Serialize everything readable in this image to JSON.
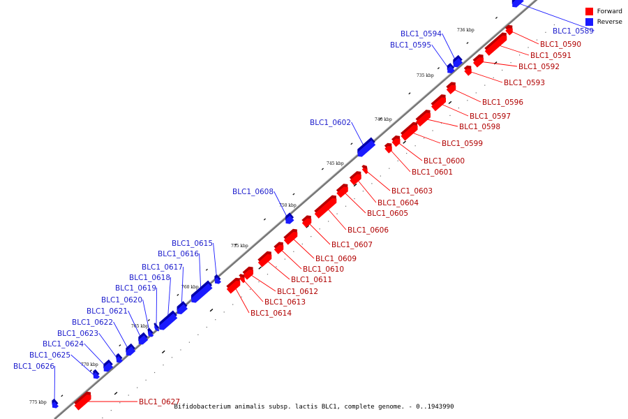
{
  "caption": "Bifidobacterium animalis subsp. lactis BLC1, complete genome. - 0..1943990",
  "legend": {
    "forward_label": "Forward",
    "reverse_label": "Reverse",
    "forward_color": "#ff0000",
    "reverse_color": "#1a1aff"
  },
  "colors": {
    "forward_fill": "#ff0000",
    "forward_side": "#b80000",
    "reverse_fill": "#1a1aff",
    "reverse_side": "#0000aa",
    "forward_label": "#b00000",
    "reverse_label": "#1a1acc",
    "backbone": "#777777"
  },
  "ticks": [
    {
      "label": "735 kbp",
      "kbp": 735
    },
    {
      "label": "740 kbp",
      "kbp": 740
    },
    {
      "label": "745 kbp",
      "kbp": 745
    },
    {
      "label": "750 kbp",
      "kbp": 750
    },
    {
      "label": "755 kbp",
      "kbp": 755
    },
    {
      "label": "760 kbp",
      "kbp": 760
    },
    {
      "label": "765 kbp",
      "kbp": 765
    },
    {
      "label": "770 kbp",
      "kbp": 770
    },
    {
      "label": "775 kbp",
      "kbp": 775
    }
  ],
  "genes": [
    {
      "name": "BLC1_0589",
      "strand": "reverse"
    },
    {
      "name": "BLC1_0590",
      "strand": "forward"
    },
    {
      "name": "BLC1_0591",
      "strand": "forward"
    },
    {
      "name": "BLC1_0592",
      "strand": "forward"
    },
    {
      "name": "BLC1_0593",
      "strand": "forward"
    },
    {
      "name": "BLC1_0594",
      "strand": "reverse"
    },
    {
      "name": "BLC1_0595",
      "strand": "reverse"
    },
    {
      "name": "BLC1_0596",
      "strand": "forward"
    },
    {
      "name": "BLC1_0597",
      "strand": "forward"
    },
    {
      "name": "BLC1_0598",
      "strand": "forward"
    },
    {
      "name": "BLC1_0599",
      "strand": "forward"
    },
    {
      "name": "BLC1_0600",
      "strand": "forward"
    },
    {
      "name": "BLC1_0601",
      "strand": "forward"
    },
    {
      "name": "BLC1_0602",
      "strand": "reverse"
    },
    {
      "name": "BLC1_0603",
      "strand": "forward"
    },
    {
      "name": "BLC1_0604",
      "strand": "forward"
    },
    {
      "name": "BLC1_0605",
      "strand": "forward"
    },
    {
      "name": "BLC1_0606",
      "strand": "forward"
    },
    {
      "name": "BLC1_0607",
      "strand": "forward"
    },
    {
      "name": "BLC1_0608",
      "strand": "reverse"
    },
    {
      "name": "BLC1_0609",
      "strand": "forward"
    },
    {
      "name": "BLC1_0610",
      "strand": "forward"
    },
    {
      "name": "BLC1_0611",
      "strand": "forward"
    },
    {
      "name": "BLC1_0612",
      "strand": "forward"
    },
    {
      "name": "BLC1_0613",
      "strand": "forward"
    },
    {
      "name": "BLC1_0614",
      "strand": "forward"
    },
    {
      "name": "BLC1_0615",
      "strand": "reverse"
    },
    {
      "name": "BLC1_0616",
      "strand": "reverse"
    },
    {
      "name": "BLC1_0617",
      "strand": "reverse"
    },
    {
      "name": "BLC1_0618",
      "strand": "reverse"
    },
    {
      "name": "BLC1_0619",
      "strand": "reverse"
    },
    {
      "name": "BLC1_0620",
      "strand": "reverse"
    },
    {
      "name": "BLC1_0621",
      "strand": "reverse"
    },
    {
      "name": "BLC1_0622",
      "strand": "reverse"
    },
    {
      "name": "BLC1_0623",
      "strand": "reverse"
    },
    {
      "name": "BLC1_0624",
      "strand": "reverse"
    },
    {
      "name": "BLC1_0625",
      "strand": "reverse"
    },
    {
      "name": "BLC1_0626",
      "strand": "reverse"
    },
    {
      "name": "BLC1_0627",
      "strand": "forward"
    }
  ]
}
